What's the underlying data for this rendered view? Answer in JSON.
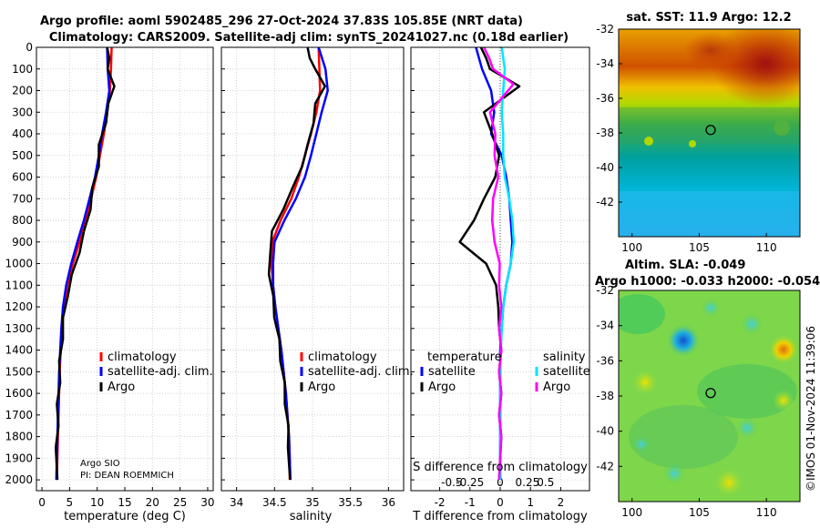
{
  "header": {
    "title_line1": "Argo profile: aoml 5902485_296 27-Oct-2024 37.83S 105.85E (NRT data)",
    "title_line2": "Climatology: CARS2009. Satellite-adj clim: synTS_20241027.nc (0.18d earlier)"
  },
  "credit": "©IMOS 01-Nov-2024 11:39:06",
  "colors": {
    "climatology": "#ff0000",
    "satellite": "#0000ff",
    "argo": "#000000",
    "sat_salinity": "#00e5ff",
    "argo_salinity": "#ff00ff",
    "sst_ring": "#000000"
  },
  "chart_data": [
    {
      "type": "line",
      "id": "temperature",
      "xlabel": "temperature (deg C)",
      "xlim": [
        -1,
        31
      ],
      "ylim": [
        2050,
        0
      ],
      "xticks": [
        0,
        5,
        10,
        15,
        20,
        25,
        30
      ],
      "yticks": [
        0,
        100,
        200,
        300,
        400,
        500,
        600,
        700,
        800,
        900,
        1000,
        1100,
        1200,
        1300,
        1400,
        1500,
        1600,
        1700,
        1800,
        1900,
        2000
      ],
      "legend": [
        "climatology",
        "satellite-adj. clim.",
        "Argo"
      ],
      "note": [
        "Argo SIO",
        "PI: DEAN ROEMMICH"
      ],
      "series": [
        {
          "name": "climatology",
          "color": "#ff0000",
          "x": [
            12.6,
            12.5,
            12.3,
            11.8,
            11.2,
            10.5,
            9.8,
            8.9,
            8.0,
            6.8,
            5.6,
            4.6,
            4.0,
            3.6,
            3.4,
            3.2,
            3.1,
            3.0,
            2.9,
            2.8,
            2.7
          ],
          "depth": [
            0,
            100,
            200,
            300,
            400,
            500,
            600,
            700,
            800,
            900,
            1000,
            1100,
            1200,
            1300,
            1400,
            1500,
            1600,
            1700,
            1800,
            1900,
            2000
          ]
        },
        {
          "name": "satellite-adj. clim.",
          "color": "#0000ff",
          "x": [
            11.8,
            11.9,
            12.2,
            11.6,
            10.9,
            10.3,
            9.6,
            8.6,
            7.6,
            6.4,
            5.3,
            4.4,
            3.8,
            3.5,
            3.3,
            3.1,
            3.0,
            2.9,
            2.8,
            2.7,
            2.6
          ],
          "depth": [
            0,
            100,
            200,
            300,
            400,
            500,
            600,
            700,
            800,
            900,
            1000,
            1100,
            1200,
            1300,
            1400,
            1500,
            1600,
            1700,
            1800,
            1900,
            2000
          ]
        },
        {
          "name": "Argo",
          "color": "#000000",
          "x": [
            12.0,
            12.0,
            12.1,
            12.9,
            12.2,
            11.4,
            10.5,
            10.1,
            9.3,
            8.6,
            7.8,
            6.6,
            5.6,
            4.5,
            4.0,
            3.6,
            3.3,
            3.1,
            2.9,
            2.8,
            2.7,
            2.6
          ],
          "depth": [
            0,
            50,
            100,
            180,
            260,
            350,
            450,
            550,
            650,
            750,
            850,
            950,
            1050,
            1150,
            1250,
            1350,
            1450,
            1550,
            1650,
            1750,
            1850,
            2000
          ]
        }
      ]
    },
    {
      "type": "line",
      "id": "salinity",
      "xlabel": "salinity",
      "xlim": [
        33.8,
        36.2
      ],
      "ylim": [
        2050,
        0
      ],
      "xticks": [
        34,
        34.5,
        35,
        35.5,
        36
      ],
      "legend": [
        "climatology",
        "satellite-adj. clim.",
        "Argo"
      ],
      "series": [
        {
          "name": "climatology",
          "color": "#ff0000",
          "x": [
            35.08,
            35.09,
            35.1,
            35.05,
            34.98,
            34.9,
            34.82,
            34.72,
            34.58,
            34.47,
            34.46,
            34.48,
            34.51,
            34.55,
            34.59,
            34.62,
            34.65,
            34.67,
            34.69,
            34.7,
            34.7
          ],
          "depth": [
            0,
            100,
            200,
            300,
            400,
            500,
            600,
            700,
            800,
            900,
            1000,
            1100,
            1200,
            1300,
            1400,
            1500,
            1600,
            1700,
            1800,
            1900,
            2000
          ]
        },
        {
          "name": "satellite-adj. clim.",
          "color": "#0000ff",
          "x": [
            35.08,
            35.17,
            35.2,
            35.12,
            35.05,
            34.98,
            34.9,
            34.78,
            34.63,
            34.5,
            34.48,
            34.48,
            34.51,
            34.55,
            34.59,
            34.62,
            34.65,
            34.67,
            34.69,
            34.7,
            34.71
          ],
          "depth": [
            0,
            100,
            200,
            300,
            400,
            500,
            600,
            700,
            800,
            900,
            1000,
            1100,
            1200,
            1300,
            1400,
            1500,
            1600,
            1700,
            1800,
            1900,
            2000
          ]
        },
        {
          "name": "Argo",
          "color": "#000000",
          "x": [
            34.95,
            34.95,
            35.05,
            35.15,
            35.05,
            35.0,
            34.95,
            34.85,
            34.75,
            34.6,
            34.48,
            34.43,
            34.44,
            34.47,
            34.51,
            34.55,
            34.59,
            34.62,
            34.65,
            34.67,
            34.69,
            34.69
          ],
          "depth": [
            0,
            50,
            100,
            180,
            260,
            350,
            450,
            550,
            650,
            750,
            850,
            950,
            1050,
            1150,
            1250,
            1350,
            1450,
            1550,
            1650,
            1750,
            1850,
            2000
          ]
        }
      ]
    },
    {
      "type": "line",
      "id": "difference",
      "xlabel": "T difference from climatology",
      "xlabel_s": "S difference from climatology",
      "xlim": [
        -2.95,
        2.95
      ],
      "ylim": [
        2050,
        0
      ],
      "xticks": [
        -2,
        -1,
        0,
        1,
        2
      ],
      "s_ticks": [
        "-0.5",
        "-0.25",
        "0",
        "0.25",
        "0.5"
      ],
      "legend_t_title": "temperature",
      "legend_s_title": "salinity",
      "legend_t": [
        "satellite",
        "Argo"
      ],
      "legend_s": [
        "satellite",
        "Argo"
      ],
      "series": [
        {
          "name": "T satellite",
          "color": "#0000ff",
          "x": [
            -0.8,
            -0.6,
            -0.3,
            -0.2,
            -0.3,
            0.05,
            0.2,
            0.3,
            0.35,
            0.4,
            0.35,
            0.2,
            0.1,
            0.05,
            0,
            0,
            0,
            0,
            0,
            0,
            0
          ],
          "depth": [
            0,
            100,
            200,
            300,
            400,
            500,
            600,
            700,
            800,
            900,
            1000,
            1100,
            1200,
            1300,
            1400,
            1500,
            1600,
            1700,
            1800,
            1900,
            2000
          ]
        },
        {
          "name": "T Argo",
          "color": "#000000",
          "x": [
            -0.6,
            -0.5,
            -0.3,
            0.6,
            -0.5,
            -0.3,
            0.0,
            -0.2,
            -0.5,
            -0.9,
            -1.3,
            -0.5,
            -0.1,
            -0.1,
            0,
            0,
            0,
            0,
            0,
            0,
            0
          ],
          "depth": [
            0,
            50,
            100,
            180,
            300,
            400,
            500,
            600,
            700,
            800,
            900,
            1000,
            1100,
            1200,
            1300,
            1400,
            1500,
            1600,
            1700,
            1800,
            2000
          ]
        },
        {
          "name": "S satellite",
          "color": "#00e5ff",
          "x": [
            0.05,
            0.15,
            0.1,
            0.05,
            0.1,
            0.1,
            0.15,
            0.3,
            0.4,
            0.45,
            0.35,
            0.2,
            0.1,
            0.05,
            0.02,
            0,
            0,
            0,
            0,
            0,
            0
          ],
          "depth": [
            0,
            100,
            200,
            300,
            400,
            500,
            600,
            700,
            800,
            900,
            1000,
            1100,
            1200,
            1300,
            1400,
            1500,
            1600,
            1700,
            1800,
            1900,
            2000
          ]
        },
        {
          "name": "S Argo",
          "color": "#ff00ff",
          "x": [
            -0.5,
            -0.4,
            -0.2,
            0.4,
            -0.3,
            -0.2,
            -0.15,
            -0.1,
            -0.2,
            -0.3,
            -0.15,
            -0.05,
            0,
            0,
            0,
            0,
            0,
            0,
            0,
            0,
            0
          ],
          "depth": [
            0,
            50,
            100,
            170,
            300,
            400,
            500,
            600,
            700,
            800,
            900,
            1000,
            1100,
            1200,
            1300,
            1400,
            1500,
            1600,
            1700,
            1800,
            2000
          ]
        }
      ]
    },
    {
      "type": "heatmap",
      "id": "sst_map",
      "title": "sat. SST: 11.9 Argo: 12.2",
      "xticks": [
        100,
        105,
        110
      ],
      "yticks": [
        -32,
        -34,
        -36,
        -38,
        -40,
        -42
      ],
      "xlim": [
        99,
        112.5
      ],
      "ylim": [
        -44,
        -32
      ],
      "argo_position": {
        "lon": 105.85,
        "lat": -37.83
      }
    },
    {
      "type": "heatmap",
      "id": "sla_map",
      "title_line1": "Altim. SLA: -0.049",
      "title_line2": "Argo h1000: -0.033 h2000: -0.054",
      "xticks": [
        100,
        105,
        110
      ],
      "yticks": [
        -32,
        -34,
        -36,
        -38,
        -40,
        -42
      ],
      "xlim": [
        99,
        112.5
      ],
      "ylim": [
        -44,
        -32
      ],
      "argo_position": {
        "lon": 105.85,
        "lat": -37.83
      }
    }
  ]
}
